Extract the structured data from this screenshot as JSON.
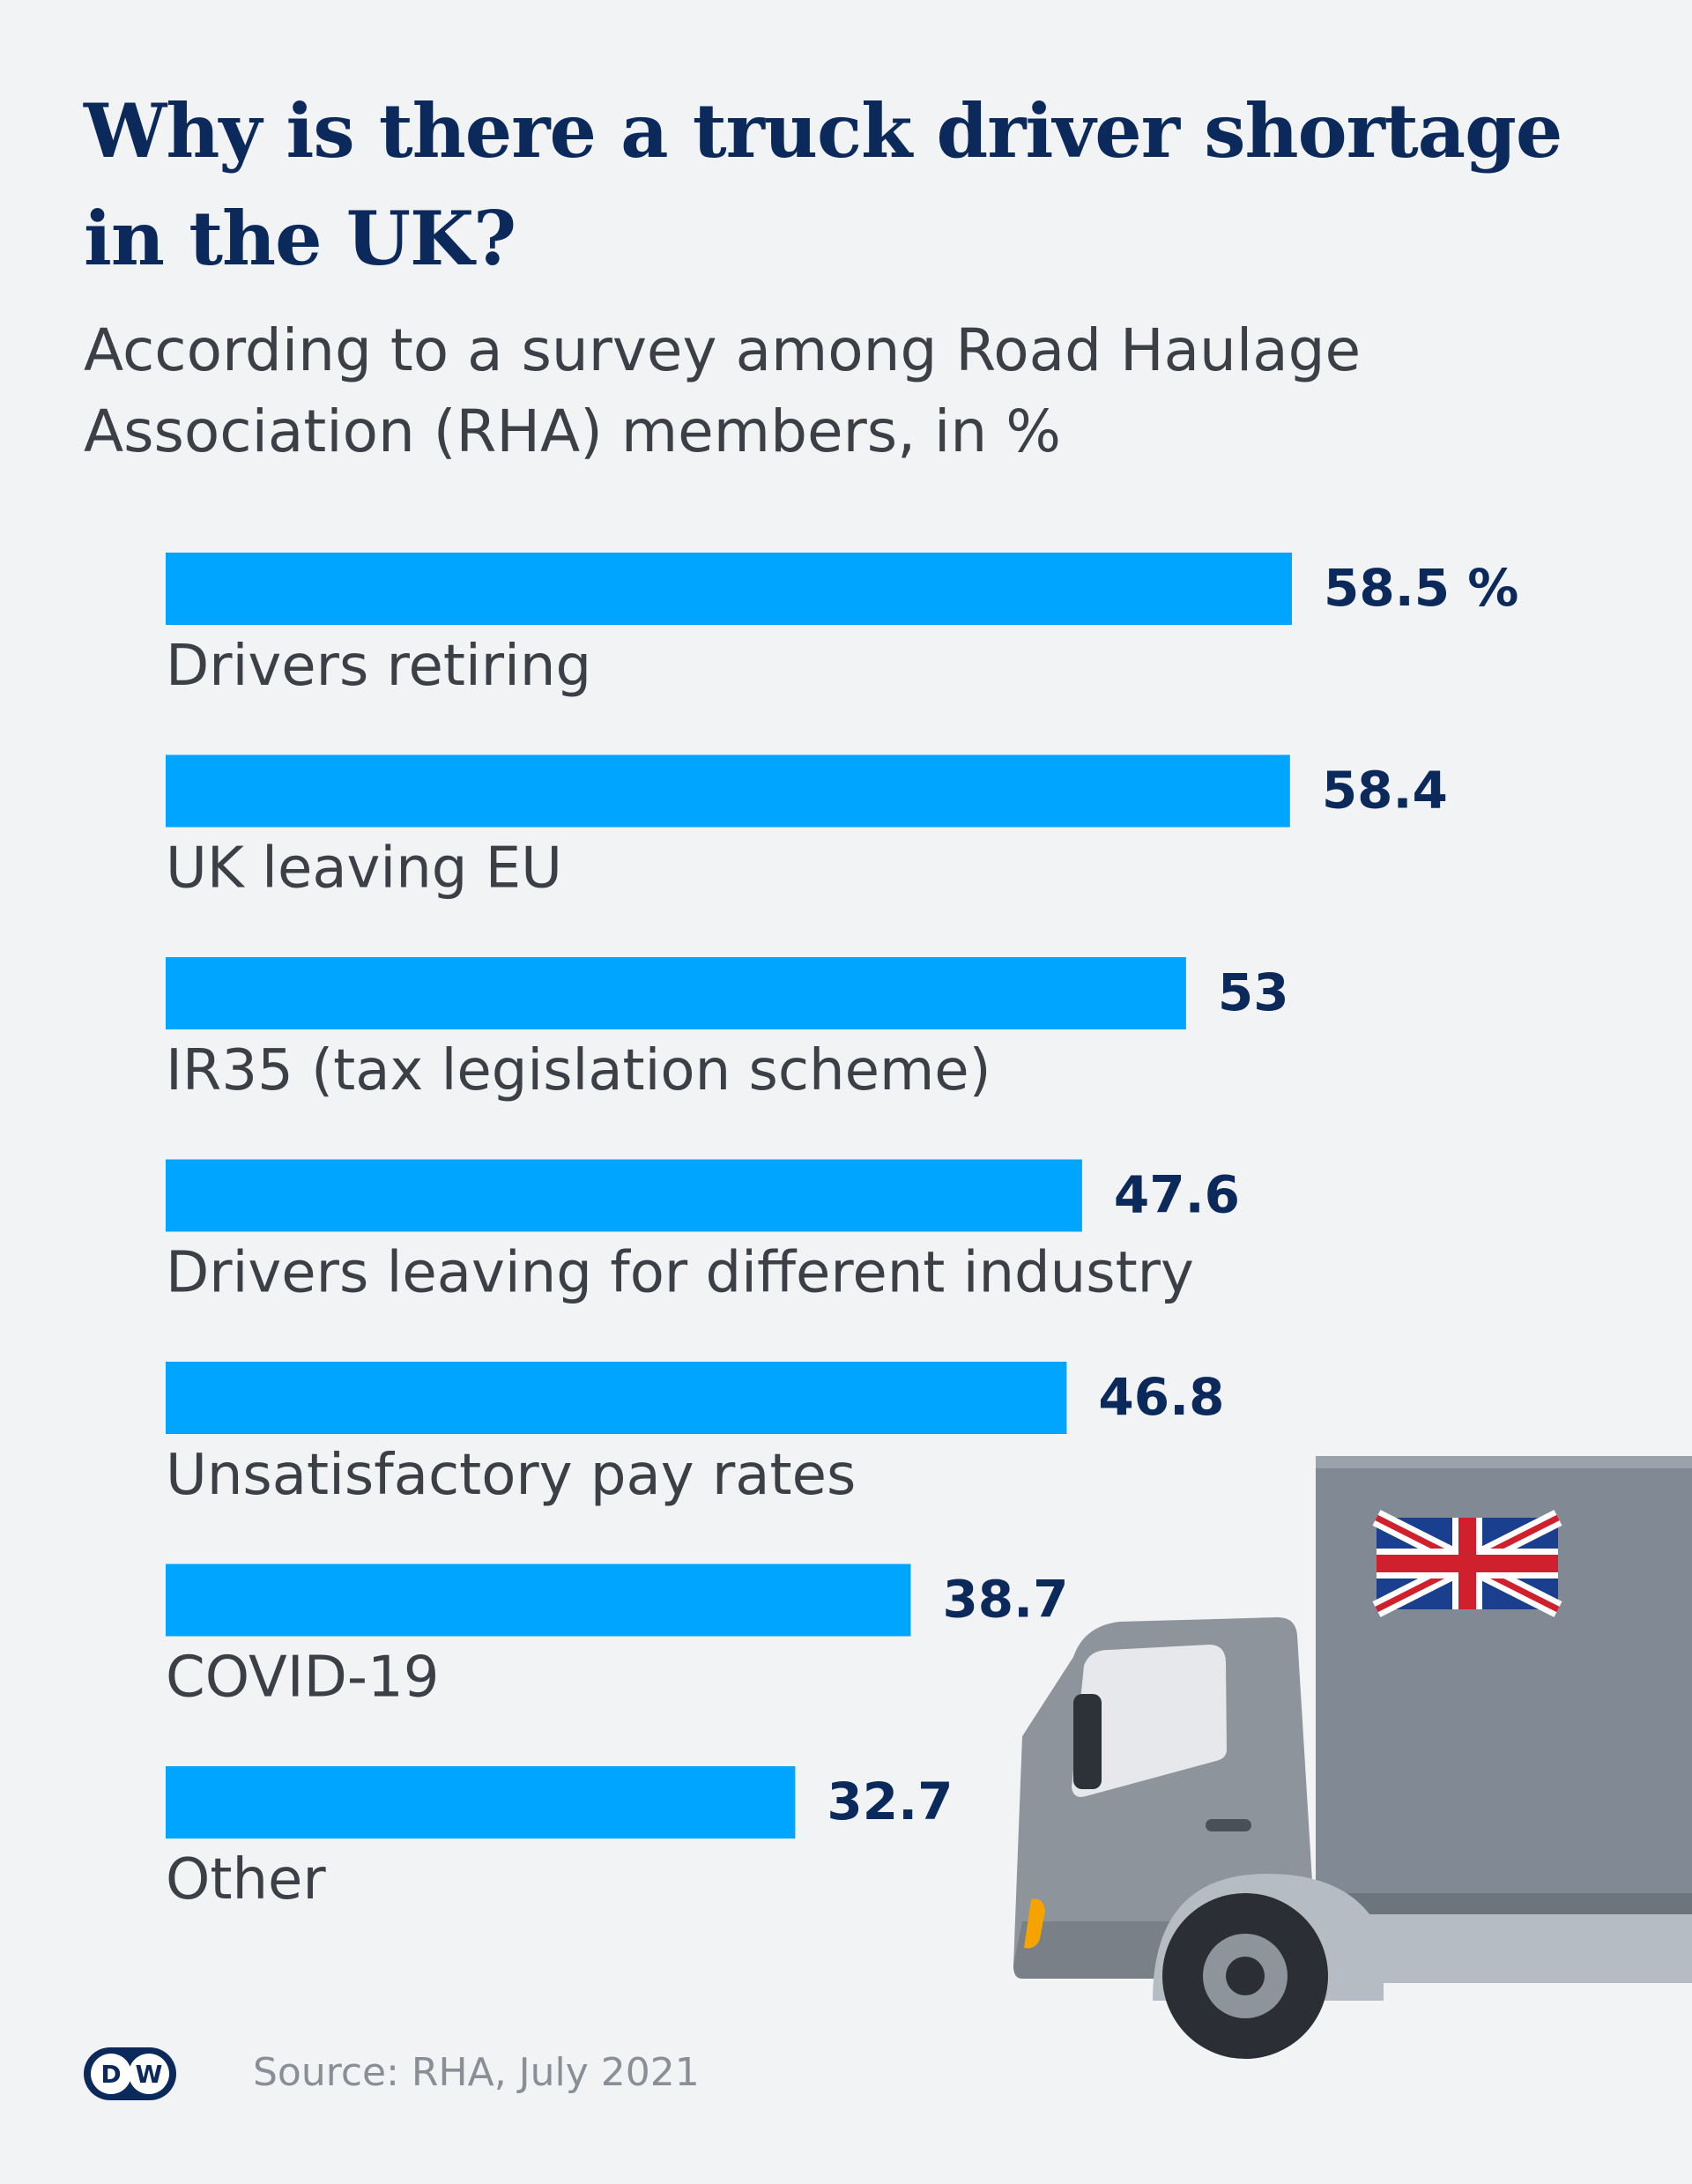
{
  "header": {
    "title": "Why is there a truck driver shortage in the UK?",
    "subtitle": "According to a survey among Road Haulage Association (RHA) members, in %"
  },
  "footer": {
    "source": "Source: RHA, July 2021",
    "logo_text": "DW"
  },
  "colors": {
    "bar": "#00a5ff",
    "value_text": "#0b2a5b",
    "label_text": "#3c3f45",
    "background": "#f2f3f5"
  },
  "chart_data": {
    "type": "bar",
    "orientation": "horizontal",
    "title": "Why is there a truck driver shortage in the UK?",
    "subtitle": "According to a survey among Road Haulage Association (RHA) members, in %",
    "categories": [
      "Drivers retiring",
      "UK leaving EU",
      "IR35 (tax legislation scheme)",
      "Drivers leaving for different industry",
      "Unsatisfactory pay rates",
      "COVID-19",
      "Other"
    ],
    "values": [
      58.5,
      58.4,
      53,
      47.6,
      46.8,
      38.7,
      32.7
    ],
    "value_labels": [
      "58.5 %",
      "58.4",
      "53",
      "47.6",
      "46.8",
      "38.7",
      "32.7"
    ],
    "unit": "%",
    "xlim": [
      0,
      58.5
    ],
    "grid": false,
    "legend": "none"
  },
  "illustration": {
    "truck_icon": "truck-icon",
    "flag_icon": "union-jack-flag-icon"
  }
}
